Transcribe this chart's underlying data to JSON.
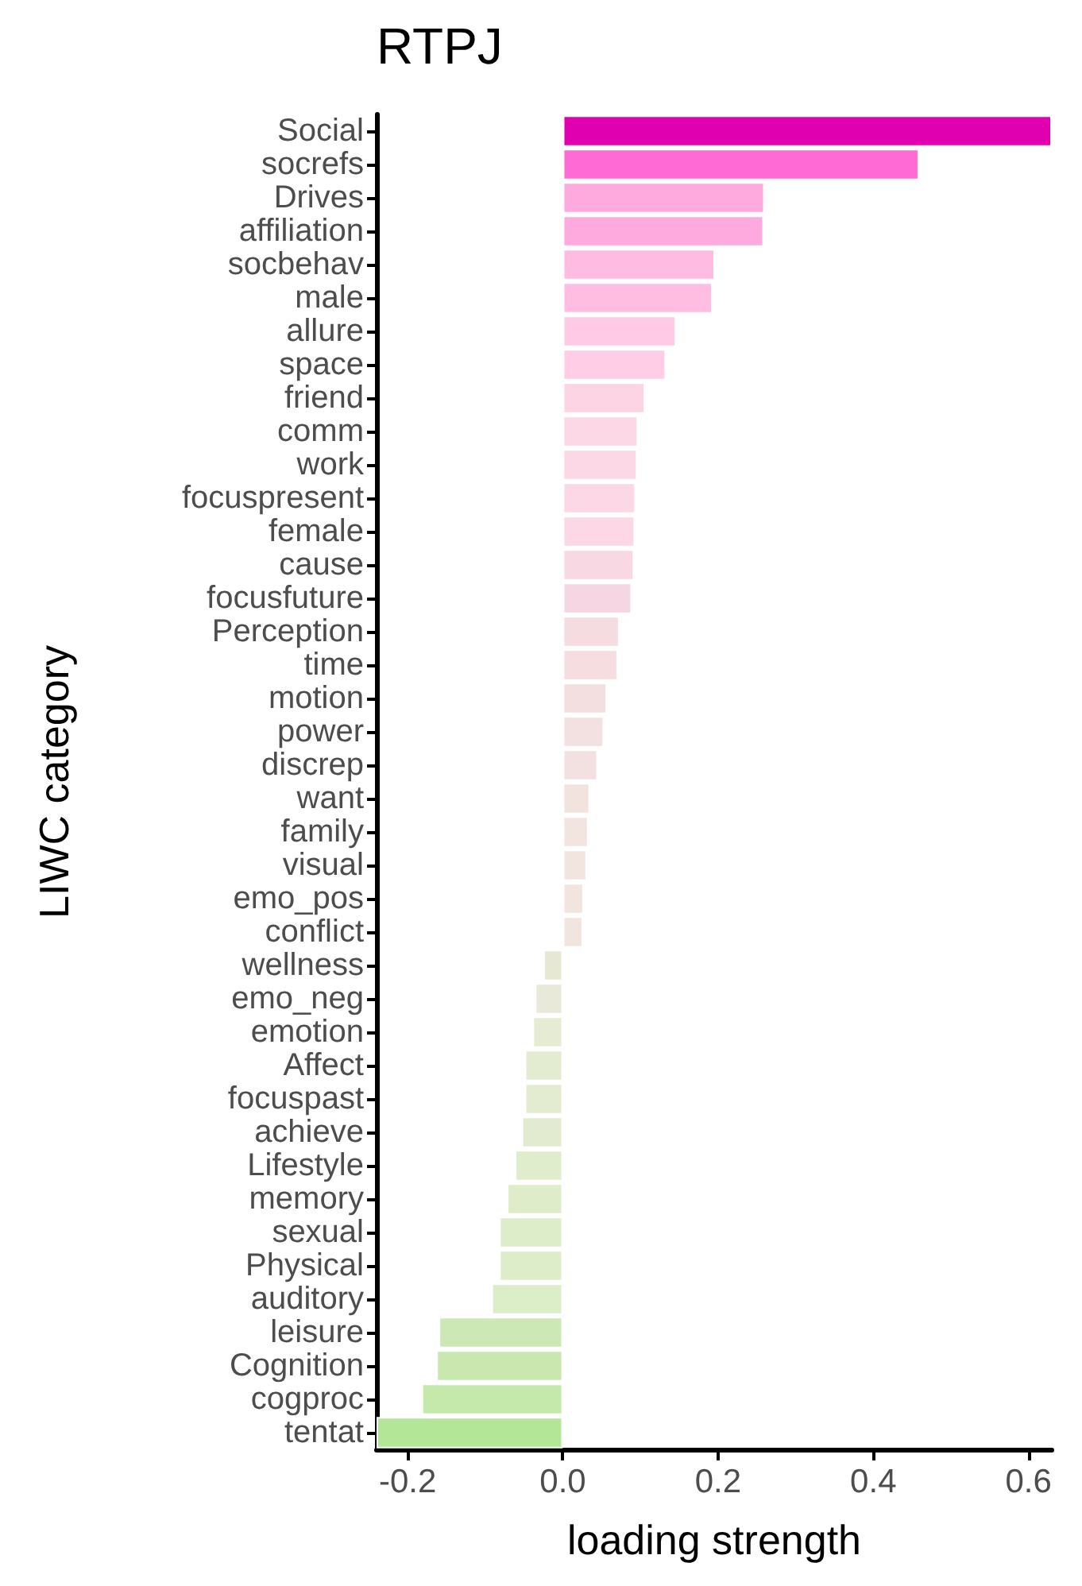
{
  "chart_data": {
    "type": "bar",
    "orientation": "horizontal",
    "title": "RTPJ",
    "xlabel": "loading strength",
    "ylabel": "LIWC category",
    "categories": [
      "Social",
      "socrefs",
      "Drives",
      "affiliation",
      "socbehav",
      "male",
      "allure",
      "space",
      "friend",
      "comm",
      "work",
      "focuspresent",
      "female",
      "cause",
      "focusfuture",
      "Perception",
      "time",
      "motion",
      "power",
      "discrep",
      "want",
      "family",
      "visual",
      "emo_pos",
      "conflict",
      "wellness",
      "emo_neg",
      "emotion",
      "Affect",
      "focuspast",
      "achieve",
      "Lifestyle",
      "memory",
      "sexual",
      "Physical",
      "auditory",
      "leisure",
      "Cognition",
      "cogproc",
      "tentat"
    ],
    "values": [
      0.63,
      0.459,
      0.26,
      0.259,
      0.196,
      0.193,
      0.146,
      0.133,
      0.106,
      0.097,
      0.096,
      0.094,
      0.093,
      0.092,
      0.089,
      0.073,
      0.071,
      0.057,
      0.053,
      0.045,
      0.035,
      0.033,
      0.031,
      0.027,
      0.026,
      -0.025,
      -0.036,
      -0.039,
      -0.049,
      -0.049,
      -0.053,
      -0.062,
      -0.072,
      -0.082,
      -0.082,
      -0.092,
      -0.16,
      -0.163,
      -0.182,
      -0.24
    ],
    "colors": [
      "#e000b0",
      "#ff6ad5",
      "#ffaadf",
      "#ffaadf",
      "#ffbbe2",
      "#ffbde2",
      "#ffcae6",
      "#ffcde6",
      "#fdd4e4",
      "#fcd7e5",
      "#fcd7e5",
      "#fcd7e5",
      "#fcd7e5",
      "#f7d8e3",
      "#f7d6e4",
      "#f5dce0",
      "#f5dde0",
      "#f3dfe0",
      "#f3e0e1",
      "#f3e0e1",
      "#f2e3df",
      "#f2e4df",
      "#f2e4df",
      "#f2e4df",
      "#f2e4df",
      "#e6e8d4",
      "#e8e9d8",
      "#e6ebd4",
      "#e3ecd0",
      "#e3ecd0",
      "#e2ebcf",
      "#e0edcd",
      "#dfecca",
      "#deedc9",
      "#deedc9",
      "#dceec7",
      "#cce8b4",
      "#c9e8b0",
      "#c5e9ab",
      "#b4e698"
    ],
    "xlim": [
      -0.24,
      0.63
    ],
    "xticks": [
      {
        "value": -0.2,
        "label": "-0.2"
      },
      {
        "value": 0,
        "label": "0.0"
      },
      {
        "value": 0.2,
        "label": "0.2"
      },
      {
        "value": 0.4,
        "label": "0.4"
      },
      {
        "value": 0.6,
        "label": "0.6"
      }
    ],
    "grid": false
  }
}
